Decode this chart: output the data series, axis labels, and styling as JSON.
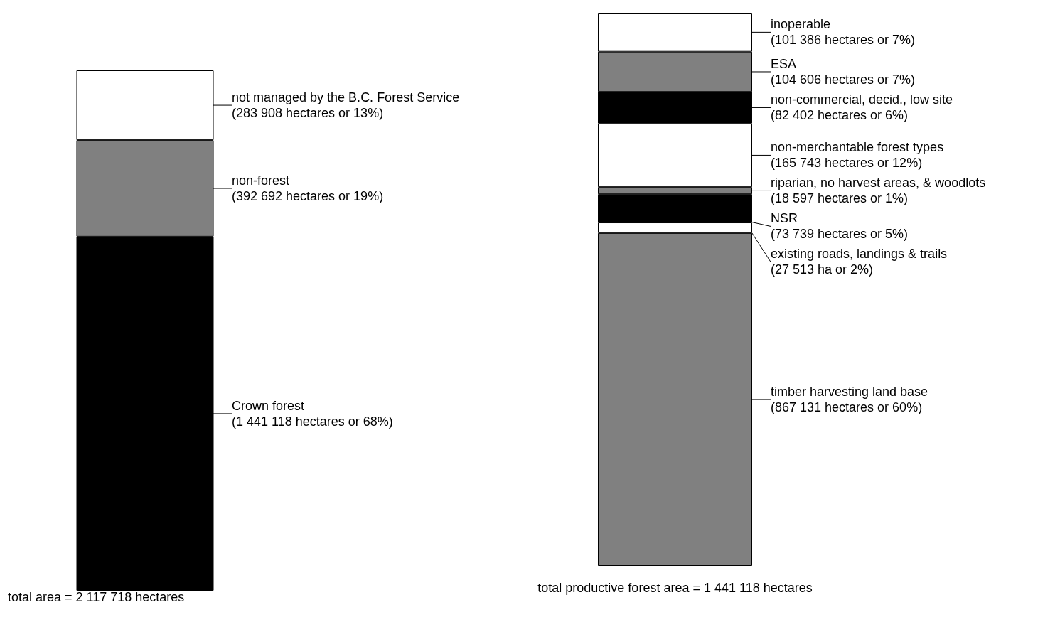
{
  "chart_data": [
    {
      "type": "bar",
      "stacked": true,
      "categories": [
        null
      ],
      "xlabel": "total area = 2 117 718 hectares",
      "legend": false,
      "tick_labels": false,
      "series": [
        {
          "name": "Crown forest",
          "color": "#000000",
          "values": [
            1441118
          ],
          "value_labels": [
            "(1 441 118 hectares or 68%)"
          ]
        },
        {
          "name": "non-forest",
          "color": "#808080",
          "values": [
            392692
          ],
          "value_labels": [
            "(392 692 hectares or 19%)"
          ]
        },
        {
          "name": "not managed by the B.C. Forest Service",
          "color": "#ffffff",
          "values": [
            283908
          ],
          "value_labels": [
            "(283 908 hectares or 13%)"
          ]
        }
      ]
    },
    {
      "type": "bar",
      "stacked": true,
      "categories": [
        null
      ],
      "xlabel": "total productive forest area = 1 441 118 hectares",
      "legend": false,
      "tick_labels": false,
      "series": [
        {
          "name": "timber harvesting land base",
          "color": "#808080",
          "values": [
            867131
          ],
          "value_labels": [
            "(867 131 hectares or 60%)"
          ]
        },
        {
          "name": "existing roads, landings & trails",
          "color": "#ffffff",
          "values": [
            27513
          ],
          "value_labels": [
            "(27 513 ha or 2%)"
          ]
        },
        {
          "name": "NSR",
          "color": "#000000",
          "values": [
            73739
          ],
          "value_labels": [
            "(73 739 hectares or 5%)"
          ]
        },
        {
          "name": "riparian, no harvest areas, & woodlots",
          "color": "#808080",
          "values": [
            18597
          ],
          "value_labels": [
            "(18 597 hectares or 1%)"
          ]
        },
        {
          "name": "non-merchantable forest types",
          "color": "#ffffff",
          "values": [
            165743
          ],
          "value_labels": [
            "(165 743 hectares or 12%)"
          ]
        },
        {
          "name": "non-commercial, decid., low site",
          "color": "#000000",
          "values": [
            82402
          ],
          "value_labels": [
            "(82 402 hectares or 6%)"
          ]
        },
        {
          "name": "ESA",
          "color": "#808080",
          "values": [
            104606
          ],
          "value_labels": [
            "(104 606 hectares or 7%)"
          ]
        },
        {
          "name": "inoperable",
          "color": "#ffffff",
          "values": [
            101386
          ],
          "value_labels": [
            "(101 386 hectares or 7%)"
          ]
        }
      ]
    }
  ]
}
